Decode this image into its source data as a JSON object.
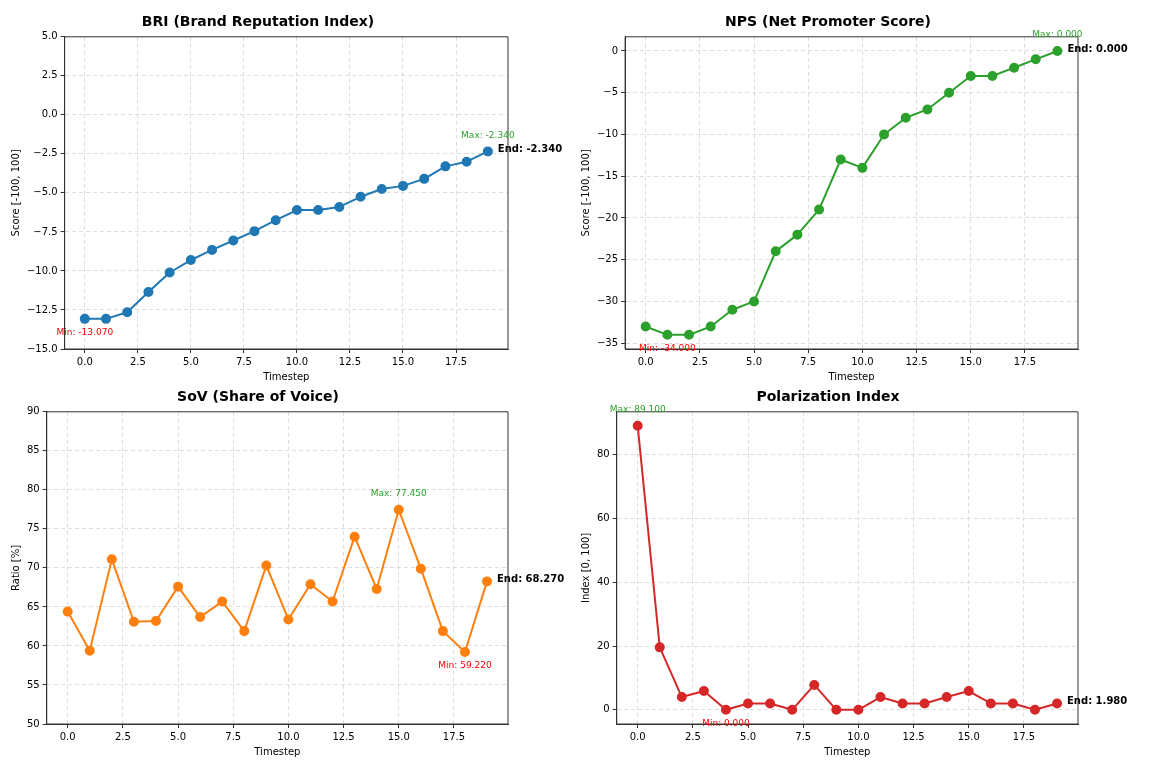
{
  "chart_data": [
    {
      "type": "line",
      "title": "BRI (Brand Reputation Index)",
      "xlabel": "Timestep",
      "ylabel": "Score [-100, 100]",
      "x": [
        0,
        1,
        2,
        3,
        4,
        5,
        6,
        7,
        8,
        9,
        10,
        11,
        12,
        13,
        14,
        15,
        16,
        17,
        18,
        19
      ],
      "series": [
        {
          "color": "#1f77b4",
          "values": [
            -13.07,
            -13.07,
            -12.65,
            -11.35,
            -10.1,
            -9.3,
            -8.65,
            -8.05,
            -7.45,
            -6.75,
            -6.1,
            -6.1,
            -5.9,
            -5.25,
            -4.75,
            -4.55,
            -4.1,
            -3.3,
            -3.0,
            -2.34
          ]
        }
      ],
      "xlim": [
        -0.95,
        19.95
      ],
      "xticks": [
        {
          "value": 0,
          "label": "0.0"
        },
        {
          "value": 2.5,
          "label": "2.5"
        },
        {
          "value": 5,
          "label": "5.0"
        },
        {
          "value": 7.5,
          "label": "7.5"
        },
        {
          "value": 10,
          "label": "10.0"
        },
        {
          "value": 12.5,
          "label": "12.5"
        },
        {
          "value": 15,
          "label": "15.0"
        },
        {
          "value": 17.5,
          "label": "17.5"
        }
      ],
      "ylim": [
        -15,
        5
      ],
      "yticks": [
        {
          "value": -15,
          "label": "−15.0"
        },
        {
          "value": -12.5,
          "label": "−12.5"
        },
        {
          "value": -10,
          "label": "−10.0"
        },
        {
          "value": -7.5,
          "label": "−7.5"
        },
        {
          "value": -5,
          "label": "−5.0"
        },
        {
          "value": -2.5,
          "label": "−2.5"
        },
        {
          "value": 0,
          "label": "0.0"
        },
        {
          "value": 2.5,
          "label": "2.5"
        },
        {
          "value": 5,
          "label": "5.0"
        }
      ],
      "annotations": [
        {
          "text": "Max: -2.340",
          "x": 19,
          "y": -2.34
        },
        {
          "text": "Min: -13.070",
          "x": 0,
          "y": -13.07
        },
        {
          "text": "End: -2.340",
          "x": 19,
          "y": -2.34
        }
      ],
      "grid": true,
      "legend": false,
      "marker": "circle",
      "line_style": "solid"
    },
    {
      "type": "line",
      "title": "NPS (Net Promoter Score)",
      "xlabel": "Timestep",
      "ylabel": "Score [-100, 100]",
      "x": [
        0,
        1,
        2,
        3,
        4,
        5,
        6,
        7,
        8,
        9,
        10,
        11,
        12,
        13,
        14,
        15,
        16,
        17,
        18,
        19
      ],
      "series": [
        {
          "color": "#2ca02c",
          "values": [
            -33,
            -34,
            -34,
            -33,
            -31,
            -30,
            -24,
            -22,
            -19,
            -13,
            -14,
            -10,
            -8,
            -7,
            -5,
            -3,
            -3,
            -2,
            -1,
            0
          ]
        }
      ],
      "xlim": [
        -0.95,
        19.95
      ],
      "xticks": [
        {
          "value": 0,
          "label": "0.0"
        },
        {
          "value": 2.5,
          "label": "2.5"
        },
        {
          "value": 5,
          "label": "5.0"
        },
        {
          "value": 7.5,
          "label": "7.5"
        },
        {
          "value": 10,
          "label": "10.0"
        },
        {
          "value": 12.5,
          "label": "12.5"
        },
        {
          "value": 15,
          "label": "15.0"
        },
        {
          "value": 17.5,
          "label": "17.5"
        }
      ],
      "ylim": [
        -35.7,
        1.7
      ],
      "yticks": [
        {
          "value": -35,
          "label": "−35"
        },
        {
          "value": -30,
          "label": "−30"
        },
        {
          "value": -25,
          "label": "−25"
        },
        {
          "value": -20,
          "label": "−20"
        },
        {
          "value": -15,
          "label": "−15"
        },
        {
          "value": -10,
          "label": "−10"
        },
        {
          "value": -5,
          "label": "−5"
        },
        0
      ],
      "annotations": [
        {
          "text": "Max: 0.000",
          "x": 19,
          "y": 0
        },
        {
          "text": "Min: -34.000",
          "x": 1,
          "y": -34
        },
        {
          "text": "End: 0.000",
          "x": 19,
          "y": 0
        }
      ],
      "grid": true,
      "legend": false,
      "marker": "circle",
      "line_style": "solid"
    },
    {
      "type": "line",
      "title": "SoV (Share of Voice)",
      "xlabel": "Timestep",
      "ylabel": "Ratio [%]",
      "x": [
        0,
        1,
        2,
        3,
        4,
        5,
        6,
        7,
        8,
        9,
        10,
        11,
        12,
        13,
        14,
        15,
        16,
        17,
        18,
        19
      ],
      "series": [
        {
          "color": "#ff7f0e",
          "values": [
            64.4,
            59.4,
            71.1,
            63.1,
            63.2,
            67.6,
            63.7,
            65.7,
            61.9,
            70.3,
            63.4,
            67.9,
            65.7,
            74.0,
            67.3,
            77.45,
            69.9,
            61.9,
            59.22,
            68.27
          ]
        }
      ],
      "xlim": [
        -0.95,
        19.95
      ],
      "xticks": [
        {
          "value": 0,
          "label": "0.0"
        },
        {
          "value": 2.5,
          "label": "2.5"
        },
        {
          "value": 5,
          "label": "5.0"
        },
        {
          "value": 7.5,
          "label": "7.5"
        },
        {
          "value": 10,
          "label": "10.0"
        },
        {
          "value": 12.5,
          "label": "12.5"
        },
        {
          "value": 15,
          "label": "15.0"
        },
        {
          "value": 17.5,
          "label": "17.5"
        }
      ],
      "ylim": [
        50,
        90
      ],
      "yticks": [
        50,
        55,
        60,
        65,
        70,
        75,
        80,
        85,
        90
      ],
      "annotations": [
        {
          "text": "Max: 77.450",
          "x": 15,
          "y": 77.45
        },
        {
          "text": "Min: 59.220",
          "x": 18,
          "y": 59.22
        },
        {
          "text": "End: 68.270",
          "x": 19,
          "y": 68.27
        }
      ],
      "grid": true,
      "legend": false,
      "marker": "circle",
      "line_style": "solid"
    },
    {
      "type": "line",
      "title": "Polarization Index",
      "xlabel": "Timestep",
      "ylabel": "Index [0, 100]",
      "x": [
        0,
        1,
        2,
        3,
        4,
        5,
        6,
        7,
        8,
        9,
        10,
        11,
        12,
        13,
        14,
        15,
        16,
        17,
        18,
        19
      ],
      "series": [
        {
          "color": "#d62728",
          "values": [
            89.1,
            19.6,
            4,
            5.9,
            0,
            2,
            2,
            0,
            7.8,
            0,
            0,
            4,
            2,
            2,
            4,
            5.9,
            2,
            2,
            0,
            1.98
          ]
        }
      ],
      "xlim": [
        -0.95,
        19.95
      ],
      "xticks": [
        {
          "value": 0,
          "label": "0.0"
        },
        {
          "value": 2.5,
          "label": "2.5"
        },
        {
          "value": 5,
          "label": "5.0"
        },
        {
          "value": 7.5,
          "label": "7.5"
        },
        {
          "value": 10,
          "label": "10.0"
        },
        {
          "value": 12.5,
          "label": "12.5"
        },
        {
          "value": 15,
          "label": "15.0"
        },
        {
          "value": 17.5,
          "label": "17.5"
        }
      ],
      "ylim": [
        -4.45,
        93.5
      ],
      "yticks": [
        0,
        20,
        40,
        60,
        80
      ],
      "annotations": [
        {
          "text": "Max: 89.100",
          "x": 0,
          "y": 89.1
        },
        {
          "text": "Min: 0.000",
          "x": 4,
          "y": 0
        },
        {
          "text": "End: 1.980",
          "x": 19,
          "y": 1.98
        }
      ],
      "grid": true,
      "legend": false,
      "marker": "circle",
      "line_style": "solid"
    }
  ]
}
